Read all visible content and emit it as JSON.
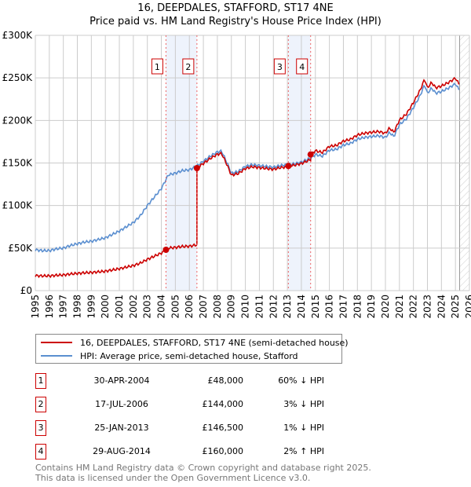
{
  "chart_data": {
    "type": "line",
    "title": "16, DEEPDALES, STAFFORD, ST17 4NE",
    "subtitle": "Price paid vs. HM Land Registry's House Price Index (HPI)",
    "xlim": [
      1995,
      2026
    ],
    "ylim": [
      0,
      300000
    ],
    "x_ticks": [
      "1995",
      "1996",
      "1997",
      "1998",
      "1999",
      "2000",
      "2001",
      "2002",
      "2003",
      "2004",
      "2005",
      "2006",
      "2007",
      "2008",
      "2009",
      "2010",
      "2011",
      "2012",
      "2013",
      "2014",
      "2015",
      "2016",
      "2017",
      "2018",
      "2019",
      "2020",
      "2021",
      "2022",
      "2023",
      "2024",
      "2025",
      "2026"
    ],
    "y_ticks": [
      {
        "v": 0,
        "label": "£0"
      },
      {
        "v": 50000,
        "label": "£50K"
      },
      {
        "v": 100000,
        "label": "£100K"
      },
      {
        "v": 150000,
        "label": "£150K"
      },
      {
        "v": 200000,
        "label": "£200K"
      },
      {
        "v": 250000,
        "label": "£250K"
      },
      {
        "v": 300000,
        "label": "£300K"
      }
    ],
    "grid": true,
    "forecast_start": 2025.3,
    "series": [
      {
        "name": "16, DEEPDALES, STAFFORD, ST17 4NE (semi-detached house)",
        "color": "#cc0000"
      },
      {
        "name": "HPI: Average price, semi-detached house, Stafford",
        "color": "#5b8fd0",
        "x": [
          1995,
          1995.5,
          1996,
          1996.5,
          1997,
          1997.5,
          1998,
          1998.5,
          1999,
          1999.5,
          2000,
          2000.5,
          2001,
          2001.5,
          2002,
          2002.5,
          2003,
          2003.5,
          2004,
          2004.5,
          2005,
          2005.5,
          2006,
          2006.5,
          2007,
          2007.5,
          2008,
          2008.3,
          2008.7,
          2009,
          2009.5,
          2010,
          2010.5,
          2011,
          2011.5,
          2012,
          2012.5,
          2013,
          2013.5,
          2014,
          2014.7,
          2015,
          2015.5,
          2016,
          2016.5,
          2017,
          2017.5,
          2018,
          2018.5,
          2019,
          2019.5,
          2020,
          2020.3,
          2020.6,
          2021,
          2021.5,
          2022,
          2022.5,
          2022.8,
          2023,
          2023.3,
          2023.6,
          2024,
          2024.5,
          2025,
          2025.3
        ],
        "y": [
          48000,
          47000,
          47000,
          49000,
          50000,
          53000,
          55000,
          57000,
          58000,
          60000,
          62000,
          66000,
          70000,
          75000,
          80000,
          88000,
          100000,
          110000,
          120000,
          136000,
          138000,
          141000,
          142000,
          146000,
          152000,
          158000,
          163000,
          164000,
          150000,
          138000,
          140000,
          146000,
          148000,
          147000,
          146000,
          145000,
          147000,
          148000,
          149000,
          151000,
          156000,
          160000,
          158000,
          165000,
          166000,
          171000,
          173000,
          178000,
          180000,
          181000,
          182000,
          180000,
          186000,
          181000,
          195000,
          202000,
          215000,
          230000,
          242000,
          232000,
          238000,
          232000,
          234000,
          238000,
          243000,
          235000
        ]
      },
      {
        "name": "sales"
      }
    ],
    "sales": [
      {
        "n": "1",
        "x": 2004.33,
        "date": "30-APR-2004",
        "price_value": 48000,
        "price": "£48,000",
        "hpi": "60% ↓ HPI"
      },
      {
        "n": "2",
        "x": 2006.54,
        "date": "17-JUL-2006",
        "price_value": 144000,
        "price": "£144,000",
        "hpi": "3% ↓ HPI"
      },
      {
        "n": "3",
        "x": 2013.07,
        "date": "25-JAN-2013",
        "price_value": 146500,
        "price": "£146,500",
        "hpi": "1% ↓ HPI"
      },
      {
        "n": "4",
        "x": 2014.66,
        "date": "29-AUG-2014",
        "price_value": 160000,
        "price": "£160,000",
        "hpi": "2% ↑ HPI"
      }
    ]
  },
  "legend": {
    "property": "16, DEEPDALES, STAFFORD, ST17 4NE (semi-detached house)",
    "hpi": "HPI: Average price, semi-detached house, Stafford"
  },
  "footer": {
    "line1": "Contains HM Land Registry data © Crown copyright and database right 2025.",
    "line2": "This data is licensed under the Open Government Licence v3.0."
  }
}
